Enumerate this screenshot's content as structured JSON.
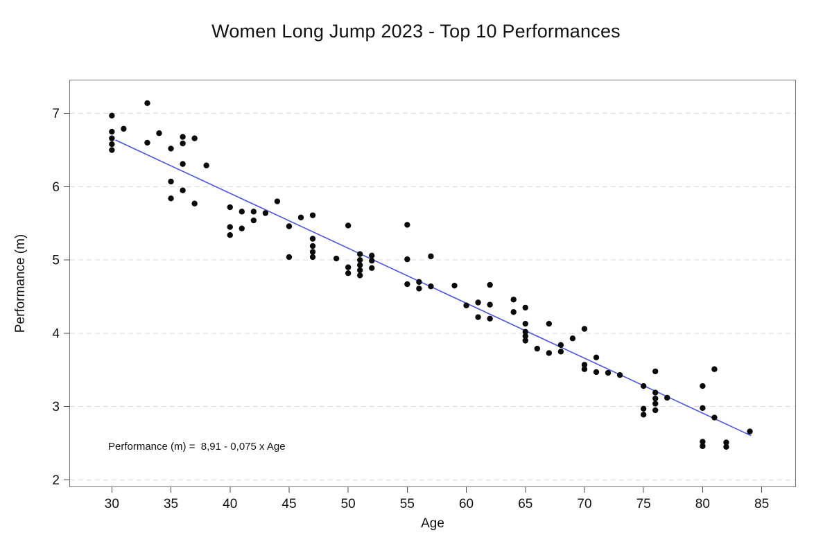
{
  "page": {
    "background": "#ffffff"
  },
  "chart_data": {
    "type": "scatter",
    "title": "Women Long Jump 2023 - Top 10 Performances",
    "xlabel": "Age",
    "ylabel": "Performance (m)",
    "annotation": "Performance (m) =  8,91 - 0,075 x Age",
    "annotation_pos": {
      "age": 30,
      "perf": 2.4
    },
    "x_ticks": [
      30,
      35,
      40,
      45,
      50,
      55,
      60,
      65,
      70,
      75,
      80,
      85
    ],
    "y_ticks": [
      2,
      3,
      4,
      5,
      6,
      7
    ],
    "xlim": [
      26.4,
      87.9
    ],
    "ylim": [
      1.9,
      7.46
    ],
    "grid": "horizontal-dashed",
    "legend": "none",
    "point_color": "#0a0a0a",
    "trend_color": "#4a55e5",
    "grid_color": "#d8d8d8",
    "border_color": "#737373",
    "tick_color": "#4a4a4a",
    "text_color": "#111111",
    "trend": {
      "label": "linear fit",
      "intercept": 8.91,
      "slope": -0.075,
      "x_start": 30.3,
      "x_end": 84.1
    },
    "points": [
      [
        30,
        6.97
      ],
      [
        30,
        6.75
      ],
      [
        30,
        6.66
      ],
      [
        30,
        6.58
      ],
      [
        30,
        6.5
      ],
      [
        31,
        6.79
      ],
      [
        33,
        7.14
      ],
      [
        33,
        6.6
      ],
      [
        34,
        6.73
      ],
      [
        35,
        6.52
      ],
      [
        35,
        6.07
      ],
      [
        35,
        5.84
      ],
      [
        36,
        6.68
      ],
      [
        36,
        6.59
      ],
      [
        36,
        6.31
      ],
      [
        36,
        5.95
      ],
      [
        37,
        6.66
      ],
      [
        37,
        5.77
      ],
      [
        38,
        6.29
      ],
      [
        40,
        5.72
      ],
      [
        40,
        5.45
      ],
      [
        40,
        5.34
      ],
      [
        41,
        5.66
      ],
      [
        41,
        5.43
      ],
      [
        42,
        5.66
      ],
      [
        42,
        5.54
      ],
      [
        43,
        5.64
      ],
      [
        44,
        5.8
      ],
      [
        45,
        5.46
      ],
      [
        45,
        5.04
      ],
      [
        46,
        5.58
      ],
      [
        47,
        5.61
      ],
      [
        47,
        5.29
      ],
      [
        47,
        5.19
      ],
      [
        47,
        5.11
      ],
      [
        47,
        5.04
      ],
      [
        49,
        5.02
      ],
      [
        50,
        5.47
      ],
      [
        50,
        4.9
      ],
      [
        50,
        4.82
      ],
      [
        51,
        5.08
      ],
      [
        51,
        5.0
      ],
      [
        51,
        4.93
      ],
      [
        51,
        4.86
      ],
      [
        51,
        4.79
      ],
      [
        52,
        5.06
      ],
      [
        52,
        4.99
      ],
      [
        52,
        4.89
      ],
      [
        55,
        5.48
      ],
      [
        55,
        5.01
      ],
      [
        55,
        4.67
      ],
      [
        56,
        4.7
      ],
      [
        56,
        4.61
      ],
      [
        57,
        5.05
      ],
      [
        57,
        4.64
      ],
      [
        59,
        4.65
      ],
      [
        60,
        4.38
      ],
      [
        61,
        4.42
      ],
      [
        61,
        4.22
      ],
      [
        62,
        4.66
      ],
      [
        62,
        4.39
      ],
      [
        62,
        4.2
      ],
      [
        64,
        4.46
      ],
      [
        64,
        4.29
      ],
      [
        65,
        4.35
      ],
      [
        65,
        4.13
      ],
      [
        65,
        4.02
      ],
      [
        65,
        3.96
      ],
      [
        65,
        3.9
      ],
      [
        66,
        3.79
      ],
      [
        67,
        4.13
      ],
      [
        67,
        3.73
      ],
      [
        68,
        3.84
      ],
      [
        68,
        3.75
      ],
      [
        69,
        3.93
      ],
      [
        70,
        4.06
      ],
      [
        70,
        3.57
      ],
      [
        70,
        3.51
      ],
      [
        71,
        3.67
      ],
      [
        71,
        3.47
      ],
      [
        72,
        3.46
      ],
      [
        73,
        3.43
      ],
      [
        75,
        3.28
      ],
      [
        75,
        2.97
      ],
      [
        75,
        2.89
      ],
      [
        76,
        3.48
      ],
      [
        76,
        3.19
      ],
      [
        76,
        3.11
      ],
      [
        76,
        3.04
      ],
      [
        76,
        2.95
      ],
      [
        77,
        3.12
      ],
      [
        80,
        3.28
      ],
      [
        80,
        2.98
      ],
      [
        80,
        2.52
      ],
      [
        80,
        2.46
      ],
      [
        81,
        3.51
      ],
      [
        81,
        2.85
      ],
      [
        82,
        2.51
      ],
      [
        82,
        2.45
      ],
      [
        84,
        2.66
      ]
    ]
  }
}
